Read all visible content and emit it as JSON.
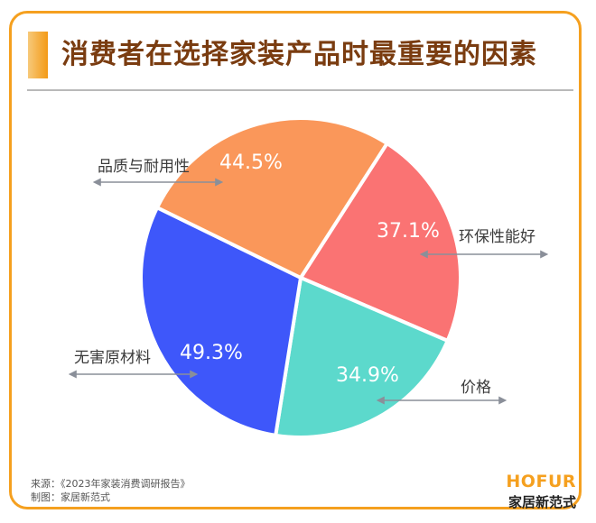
{
  "header": {
    "title": "消费者在选择家装产品时最重要的因素"
  },
  "chart_data": {
    "type": "pie",
    "title": "消费者在选择家装产品时最重要的因素",
    "categories": [
      "环保性能好",
      "价格",
      "无害原材料",
      "品质与耐用性"
    ],
    "values": [
      37.1,
      34.9,
      49.3,
      44.5
    ],
    "value_labels": [
      "37.1%",
      "34.9%",
      "49.3%",
      "44.5%"
    ],
    "colors": [
      "#FA7373",
      "#5CD9CC",
      "#3E57FA",
      "#FA975A"
    ],
    "start_angle_deg": 32.7,
    "direction": "clockwise",
    "legend": "none (callout labels with double-headed arrow lines)"
  },
  "labels": {
    "quality": {
      "name": "品质与耐用性",
      "pct": "44.5%"
    },
    "eco": {
      "name": "环保性能好",
      "pct": "37.1%"
    },
    "material": {
      "name": "无害原材料",
      "pct": "49.3%"
    },
    "price": {
      "name": "价格",
      "pct": "34.9%"
    }
  },
  "footer": {
    "source": "来源：《2023年家装消费调研报告》",
    "made_by": "制图：家居新范式"
  },
  "brand": {
    "en": "HOFUR",
    "cn": "家居新范式",
    "accent": "#F5A01F"
  }
}
